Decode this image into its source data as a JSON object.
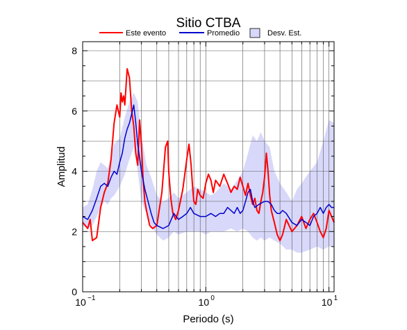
{
  "chart_data": {
    "type": "line",
    "title": "Sitio CTBA",
    "xlabel": "Periodo (s)",
    "ylabel": "Amplitud",
    "x_scale": "log",
    "xlim": [
      0.1,
      11
    ],
    "ylim": [
      0,
      8.3
    ],
    "grid": true,
    "legend_placement": "top",
    "x_ticks": [
      {
        "value": 0.1,
        "mantissa": "10",
        "exponent": "−1"
      },
      {
        "value": 1,
        "mantissa": "10",
        "exponent": "0"
      },
      {
        "value": 10,
        "mantissa": "10",
        "exponent": "1"
      }
    ],
    "y_ticks": [
      {
        "value": 0,
        "label": "0"
      },
      {
        "value": 2,
        "label": "2"
      },
      {
        "value": 4,
        "label": "4"
      },
      {
        "value": 6,
        "label": "6"
      },
      {
        "value": 8,
        "label": "8"
      }
    ],
    "legend": {
      "event_label": "Este evento",
      "mean_label": "Promedio",
      "std_label": "Desv. Est."
    },
    "colors": {
      "event": "#ff0000",
      "mean": "#0000cc",
      "band_fill": "#d8d8fa",
      "grid": "#555555"
    },
    "series": [
      {
        "name": "Este evento",
        "x": [
          0.1,
          0.105,
          0.11,
          0.115,
          0.12,
          0.125,
          0.13,
          0.14,
          0.15,
          0.16,
          0.17,
          0.18,
          0.19,
          0.2,
          0.205,
          0.21,
          0.215,
          0.22,
          0.23,
          0.24,
          0.25,
          0.26,
          0.27,
          0.28,
          0.29,
          0.3,
          0.31,
          0.32,
          0.33,
          0.35,
          0.37,
          0.4,
          0.44,
          0.47,
          0.49,
          0.5,
          0.52,
          0.54,
          0.57,
          0.6,
          0.65,
          0.7,
          0.73,
          0.76,
          0.78,
          0.8,
          0.83,
          0.86,
          0.9,
          0.95,
          1.0,
          1.05,
          1.1,
          1.15,
          1.2,
          1.3,
          1.4,
          1.5,
          1.6,
          1.7,
          1.8,
          1.9,
          2.0,
          2.1,
          2.2,
          2.3,
          2.4,
          2.5,
          2.6,
          2.7,
          2.8,
          2.9,
          3.0,
          3.1,
          3.2,
          3.3,
          3.4,
          3.6,
          3.8,
          4.0,
          4.2,
          4.5,
          5.0,
          5.5,
          6.0,
          6.5,
          7.0,
          7.5,
          8.0,
          8.5,
          9.0,
          9.5,
          10.0,
          10.5,
          11.0
        ],
        "values": [
          2.3,
          2.2,
          2.1,
          2.4,
          1.7,
          1.75,
          1.8,
          2.8,
          3.3,
          3.6,
          4.4,
          5.6,
          6.2,
          5.8,
          6.6,
          6.3,
          6.5,
          6.2,
          7.4,
          7.1,
          6.0,
          5.5,
          4.6,
          4.2,
          5.7,
          4.9,
          3.7,
          3.0,
          2.7,
          2.2,
          2.1,
          2.2,
          3.3,
          4.8,
          5.0,
          4.0,
          3.1,
          2.6,
          2.4,
          2.7,
          3.4,
          4.4,
          4.9,
          4.2,
          3.5,
          3.0,
          2.9,
          3.4,
          3.2,
          3.1,
          3.6,
          3.9,
          3.7,
          3.3,
          3.7,
          3.5,
          3.9,
          3.6,
          3.3,
          3.5,
          3.4,
          3.8,
          3.5,
          3.2,
          3.6,
          3.2,
          2.9,
          3.1,
          2.7,
          2.6,
          3.0,
          3.3,
          3.8,
          4.6,
          4.0,
          3.2,
          2.7,
          2.3,
          1.9,
          1.7,
          1.9,
          2.4,
          2.0,
          2.2,
          2.5,
          2.1,
          2.4,
          2.6,
          2.3,
          2.0,
          1.8,
          2.1,
          2.7,
          2.5,
          2.3
        ]
      },
      {
        "name": "Promedio",
        "x": [
          0.1,
          0.11,
          0.12,
          0.13,
          0.14,
          0.15,
          0.16,
          0.17,
          0.18,
          0.19,
          0.2,
          0.21,
          0.22,
          0.23,
          0.24,
          0.25,
          0.26,
          0.27,
          0.28,
          0.3,
          0.32,
          0.34,
          0.36,
          0.38,
          0.4,
          0.45,
          0.5,
          0.55,
          0.6,
          0.65,
          0.7,
          0.75,
          0.8,
          0.9,
          1.0,
          1.1,
          1.2,
          1.3,
          1.4,
          1.5,
          1.6,
          1.7,
          1.8,
          1.9,
          2.0,
          2.1,
          2.2,
          2.3,
          2.4,
          2.5,
          2.7,
          3.0,
          3.2,
          3.4,
          3.6,
          3.8,
          4.0,
          4.2,
          4.5,
          5.0,
          5.5,
          6.0,
          6.5,
          7.0,
          7.5,
          8.0,
          8.5,
          9.0,
          9.5,
          10.0,
          10.5,
          11.0
        ],
        "values": [
          2.5,
          2.4,
          2.7,
          3.1,
          3.5,
          3.6,
          3.5,
          3.8,
          4.0,
          3.9,
          4.3,
          4.6,
          5.1,
          5.4,
          5.6,
          5.9,
          6.2,
          5.6,
          4.9,
          4.0,
          3.4,
          3.0,
          2.6,
          2.3,
          2.2,
          2.1,
          2.2,
          2.6,
          2.4,
          2.5,
          2.6,
          2.8,
          2.6,
          2.5,
          2.5,
          2.6,
          2.5,
          2.6,
          2.6,
          2.8,
          2.7,
          2.6,
          2.8,
          2.6,
          2.7,
          3.0,
          3.3,
          3.4,
          3.0,
          2.8,
          2.9,
          3.0,
          3.0,
          2.9,
          2.7,
          2.6,
          2.6,
          2.7,
          2.6,
          2.3,
          2.2,
          2.4,
          2.3,
          2.2,
          2.5,
          2.6,
          2.8,
          2.6,
          2.8,
          2.9,
          2.8,
          2.8
        ]
      }
    ],
    "std_band": {
      "name": "Desv. Est.",
      "x": [
        0.1,
        0.11,
        0.12,
        0.13,
        0.14,
        0.15,
        0.16,
        0.17,
        0.18,
        0.2,
        0.22,
        0.24,
        0.26,
        0.28,
        0.3,
        0.33,
        0.36,
        0.4,
        0.45,
        0.5,
        0.55,
        0.6,
        0.7,
        0.8,
        0.9,
        1.0,
        1.1,
        1.2,
        1.4,
        1.6,
        1.8,
        2.0,
        2.2,
        2.4,
        2.6,
        2.8,
        3.0,
        3.3,
        3.6,
        4.0,
        4.5,
        5.0,
        5.5,
        6.0,
        7.0,
        8.0,
        9.0,
        10.0,
        11.0
      ],
      "upper": [
        2.8,
        2.9,
        3.4,
        4.0,
        4.3,
        4.2,
        4.1,
        4.5,
        4.9,
        5.1,
        5.8,
        6.3,
        6.6,
        6.3,
        5.2,
        4.2,
        3.8,
        3.2,
        3.0,
        3.1,
        3.3,
        3.1,
        3.3,
        3.5,
        3.4,
        3.3,
        3.2,
        3.3,
        3.6,
        3.4,
        3.7,
        4.0,
        4.6,
        5.2,
        5.0,
        5.3,
        5.0,
        4.8,
        4.0,
        3.6,
        3.3,
        3.0,
        3.4,
        3.6,
        4.0,
        4.3,
        5.0,
        5.7,
        5.6
      ],
      "lower": [
        2.2,
        2.1,
        2.2,
        2.5,
        2.8,
        3.0,
        2.9,
        3.1,
        3.2,
        3.5,
        3.9,
        4.4,
        4.8,
        4.0,
        3.0,
        2.6,
        2.2,
        1.9,
        1.7,
        1.8,
        2.0,
        1.9,
        2.0,
        2.0,
        2.0,
        1.9,
        2.0,
        2.0,
        2.0,
        2.1,
        2.0,
        2.1,
        2.0,
        1.8,
        1.7,
        1.8,
        1.7,
        1.8,
        1.7,
        1.6,
        1.4,
        1.4,
        1.3,
        1.3,
        1.4,
        1.5,
        1.4,
        1.5,
        1.5
      ]
    }
  }
}
